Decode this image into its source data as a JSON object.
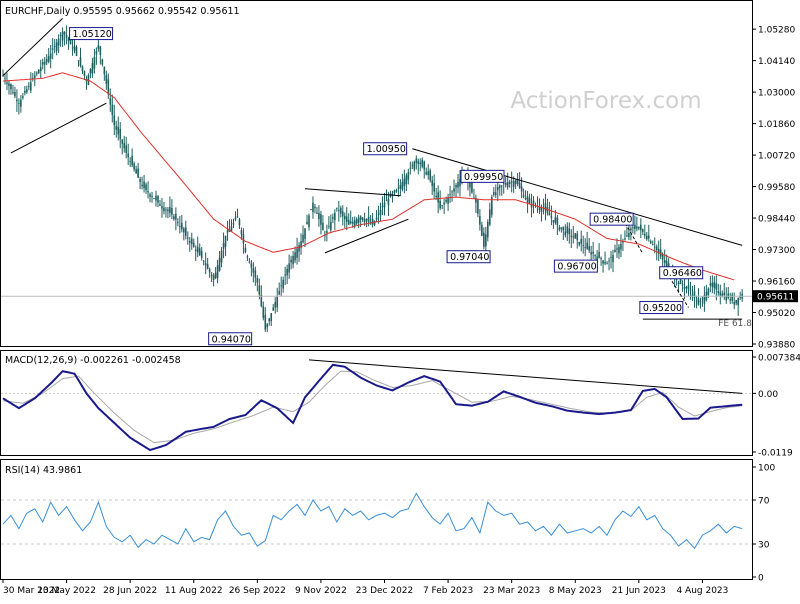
{
  "colors": {
    "frame": "#000000",
    "candle": "#1f5f5f",
    "ma": "#e0302a",
    "macd": "#1a1a8c",
    "signal": "#a8a8a8",
    "rsi": "#3a8fd8",
    "grid": "#c8c8c8",
    "watermark": "#d0d0d0",
    "label_border": "#1a1a8c"
  },
  "watermark": "ActionForex.com",
  "chart_data": [
    {
      "type": "candlestick",
      "header": "EURCHF,Daily  0.95595 0.95662 0.95542 0.95611",
      "ylim": [
        0.9388,
        1.0572
      ],
      "y_ticks": [
        "1.05280",
        "1.04140",
        "1.03000",
        "1.01860",
        "1.00720",
        "0.99580",
        "0.98440",
        "0.97300",
        "0.96160",
        "0.95020",
        "0.93880"
      ],
      "current_price": "0.95611",
      "price_levels": [
        {
          "label": "1.05120",
          "value": 1.0512
        },
        {
          "label": "0.94070",
          "value": 0.9407
        },
        {
          "label": "1.00950",
          "value": 1.0095
        },
        {
          "label": "0.99950",
          "value": 0.9995
        },
        {
          "label": "0.97040",
          "value": 0.9704
        },
        {
          "label": "0.96700",
          "value": 0.967
        },
        {
          "label": "0.98400",
          "value": 0.984
        },
        {
          "label": "0.96460",
          "value": 0.9646
        },
        {
          "label": "0.95200",
          "value": 0.952
        }
      ],
      "annotation": "FE 61.8",
      "x_labels": [
        "30 Mar 2022",
        "13 May 2022",
        "28 Jun 2022",
        "11 Aug 2022",
        "26 Sep 2022",
        "9 Nov 2022",
        "23 Dec 2022",
        "7 Feb 2023",
        "23 Mar 2023",
        "8 May 2023",
        "21 Jun 2023",
        "4 Aug 2023"
      ],
      "close_path": [
        [
          0,
          1.036
        ],
        [
          8,
          1.026
        ],
        [
          16,
          1.036
        ],
        [
          24,
          1.044
        ],
        [
          30,
          1.052
        ],
        [
          36,
          1.045
        ],
        [
          42,
          1.034
        ],
        [
          48,
          1.047
        ],
        [
          52,
          1.033
        ],
        [
          56,
          1.018
        ],
        [
          62,
          1.008
        ],
        [
          70,
          0.996
        ],
        [
          78,
          0.99
        ],
        [
          86,
          0.985
        ],
        [
          92,
          0.978
        ],
        [
          100,
          0.97
        ],
        [
          106,
          0.962
        ],
        [
          112,
          0.978
        ],
        [
          118,
          0.985
        ],
        [
          122,
          0.972
        ],
        [
          128,
          0.961
        ],
        [
          132,
          0.944
        ],
        [
          136,
          0.952
        ],
        [
          140,
          0.96
        ],
        [
          144,
          0.968
        ],
        [
          150,
          0.976
        ],
        [
          156,
          0.99
        ],
        [
          162,
          0.978
        ],
        [
          168,
          0.988
        ],
        [
          174,
          0.982
        ],
        [
          180,
          0.985
        ],
        [
          186,
          0.982
        ],
        [
          192,
          0.99
        ],
        [
          198,
          0.994
        ],
        [
          204,
          1.001
        ],
        [
          208,
          1.006
        ],
        [
          214,
          1.0
        ],
        [
          220,
          0.988
        ],
        [
          226,
          0.994
        ],
        [
          232,
          1.001
        ],
        [
          238,
          0.99
        ],
        [
          242,
          0.974
        ],
        [
          246,
          0.992
        ],
        [
          252,
          0.997
        ],
        [
          258,
          0.998
        ],
        [
          264,
          0.99
        ],
        [
          272,
          0.988
        ],
        [
          280,
          0.981
        ],
        [
          288,
          0.977
        ],
        [
          296,
          0.972
        ],
        [
          304,
          0.968
        ],
        [
          312,
          0.976
        ],
        [
          318,
          0.982
        ],
        [
          324,
          0.978
        ],
        [
          328,
          0.974
        ],
        [
          334,
          0.967
        ],
        [
          340,
          0.961
        ],
        [
          346,
          0.958
        ],
        [
          350,
          0.953
        ],
        [
          356,
          0.96
        ],
        [
          362,
          0.957
        ],
        [
          368,
          0.954
        ],
        [
          372,
          0.957
        ]
      ],
      "ma_path": [
        [
          0,
          1.034
        ],
        [
          20,
          1.035
        ],
        [
          30,
          1.037
        ],
        [
          44,
          1.034
        ],
        [
          56,
          1.028
        ],
        [
          70,
          1.015
        ],
        [
          90,
          0.998
        ],
        [
          106,
          0.984
        ],
        [
          122,
          0.976
        ],
        [
          136,
          0.972
        ],
        [
          150,
          0.974
        ],
        [
          164,
          0.979
        ],
        [
          180,
          0.982
        ],
        [
          196,
          0.984
        ],
        [
          212,
          0.991
        ],
        [
          228,
          0.992
        ],
        [
          242,
          0.991
        ],
        [
          258,
          0.991
        ],
        [
          272,
          0.988
        ],
        [
          288,
          0.984
        ],
        [
          304,
          0.977
        ],
        [
          320,
          0.975
        ],
        [
          336,
          0.97
        ],
        [
          350,
          0.966
        ],
        [
          368,
          0.962
        ]
      ]
    },
    {
      "type": "line",
      "header": "MACD(12,26,9) -0.002261 -0.002458",
      "ylim": [
        -0.0119,
        0.007384
      ],
      "y_ticks": [
        "0.007384",
        "0.00",
        "-0.0119"
      ],
      "series": [
        {
          "role": "macd",
          "points": [
            [
              0,
              -0.001
            ],
            [
              8,
              -0.003
            ],
            [
              16,
              -0.001
            ],
            [
              24,
              0.002
            ],
            [
              30,
              0.0045
            ],
            [
              36,
              0.004
            ],
            [
              42,
              0.0
            ],
            [
              48,
              -0.003
            ],
            [
              56,
              -0.006
            ],
            [
              64,
              -0.009
            ],
            [
              74,
              -0.0115
            ],
            [
              82,
              -0.0105
            ],
            [
              92,
              -0.0078
            ],
            [
              100,
              -0.0072
            ],
            [
              106,
              -0.0068
            ],
            [
              114,
              -0.0052
            ],
            [
              122,
              -0.0044
            ],
            [
              130,
              -0.0014
            ],
            [
              138,
              -0.003
            ],
            [
              146,
              -0.006
            ],
            [
              152,
              -0.0008
            ],
            [
              160,
              0.003
            ],
            [
              166,
              0.0058
            ],
            [
              172,
              0.0054
            ],
            [
              180,
              0.0032
            ],
            [
              188,
              0.0016
            ],
            [
              196,
              0.0006
            ],
            [
              204,
              0.0022
            ],
            [
              212,
              0.0035
            ],
            [
              220,
              0.0024
            ],
            [
              228,
              -0.0022
            ],
            [
              236,
              -0.0025
            ],
            [
              244,
              -0.0017
            ],
            [
              252,
              0.0004
            ],
            [
              260,
              -0.0007
            ],
            [
              268,
              -0.0019
            ],
            [
              276,
              -0.0026
            ],
            [
              284,
              -0.0035
            ],
            [
              292,
              -0.0039
            ],
            [
              300,
              -0.0042
            ],
            [
              308,
              -0.0039
            ],
            [
              316,
              -0.0034
            ],
            [
              322,
              0.0005
            ],
            [
              328,
              0.0009
            ],
            [
              334,
              -0.0008
            ],
            [
              342,
              -0.0052
            ],
            [
              350,
              -0.0051
            ],
            [
              356,
              -0.0029
            ],
            [
              364,
              -0.0026
            ],
            [
              372,
              -0.0023
            ]
          ]
        },
        {
          "role": "signal",
          "points": [
            [
              0,
              -0.0015
            ],
            [
              10,
              -0.002
            ],
            [
              20,
              0.0
            ],
            [
              30,
              0.003
            ],
            [
              38,
              0.0035
            ],
            [
              46,
              0.0
            ],
            [
              56,
              -0.004
            ],
            [
              66,
              -0.0075
            ],
            [
              76,
              -0.01
            ],
            [
              86,
              -0.0095
            ],
            [
              96,
              -0.0081
            ],
            [
              106,
              -0.0072
            ],
            [
              116,
              -0.0058
            ],
            [
              126,
              -0.0045
            ],
            [
              136,
              -0.0028
            ],
            [
              146,
              -0.0037
            ],
            [
              154,
              -0.0018
            ],
            [
              162,
              0.0016
            ],
            [
              170,
              0.0045
            ],
            [
              178,
              0.0044
            ],
            [
              186,
              0.0028
            ],
            [
              196,
              0.0012
            ],
            [
              206,
              0.0016
            ],
            [
              216,
              0.0026
            ],
            [
              226,
              0.0004
            ],
            [
              236,
              -0.0018
            ],
            [
              246,
              -0.0016
            ],
            [
              256,
              -0.0006
            ],
            [
              266,
              -0.0013
            ],
            [
              276,
              -0.0022
            ],
            [
              286,
              -0.0031
            ],
            [
              296,
              -0.0038
            ],
            [
              306,
              -0.004
            ],
            [
              316,
              -0.0035
            ],
            [
              324,
              -0.0008
            ],
            [
              332,
              0.0002
            ],
            [
              340,
              -0.0028
            ],
            [
              348,
              -0.0046
            ],
            [
              356,
              -0.0037
            ],
            [
              364,
              -0.0029
            ],
            [
              372,
              -0.0025
            ]
          ]
        }
      ],
      "trendline": [
        [
          154,
          0.0068
        ],
        [
          372,
          0.0
        ]
      ]
    },
    {
      "type": "line",
      "header": "RSI(14) 43.9861",
      "ylim": [
        0,
        100
      ],
      "y_ticks": [
        "100",
        "70",
        "30",
        "0"
      ],
      "levels": [
        70,
        30
      ],
      "series": [
        {
          "role": "rsi",
          "points": [
            [
              0,
              48
            ],
            [
              4,
              56
            ],
            [
              8,
              44
            ],
            [
              12,
              58
            ],
            [
              16,
              62
            ],
            [
              20,
              50
            ],
            [
              24,
              68
            ],
            [
              28,
              56
            ],
            [
              32,
              64
            ],
            [
              36,
              52
            ],
            [
              40,
              42
            ],
            [
              44,
              50
            ],
            [
              48,
              68
            ],
            [
              52,
              46
            ],
            [
              56,
              36
            ],
            [
              60,
              32
            ],
            [
              64,
              38
            ],
            [
              68,
              27
            ],
            [
              72,
              34
            ],
            [
              76,
              30
            ],
            [
              80,
              38
            ],
            [
              84,
              34
            ],
            [
              88,
              30
            ],
            [
              92,
              44
            ],
            [
              96,
              32
            ],
            [
              100,
              36
            ],
            [
              104,
              34
            ],
            [
              108,
              52
            ],
            [
              112,
              60
            ],
            [
              116,
              46
            ],
            [
              120,
              38
            ],
            [
              124,
              40
            ],
            [
              128,
              28
            ],
            [
              132,
              33
            ],
            [
              136,
              56
            ],
            [
              140,
              52
            ],
            [
              144,
              60
            ],
            [
              148,
              66
            ],
            [
              152,
              56
            ],
            [
              156,
              70
            ],
            [
              160,
              60
            ],
            [
              164,
              64
            ],
            [
              168,
              50
            ],
            [
              172,
              62
            ],
            [
              176,
              56
            ],
            [
              180,
              60
            ],
            [
              184,
              52
            ],
            [
              188,
              56
            ],
            [
              192,
              58
            ],
            [
              196,
              54
            ],
            [
              200,
              60
            ],
            [
              204,
              62
            ],
            [
              208,
              76
            ],
            [
              212,
              64
            ],
            [
              216,
              54
            ],
            [
              220,
              48
            ],
            [
              224,
              58
            ],
            [
              228,
              42
            ],
            [
              232,
              44
            ],
            [
              236,
              54
            ],
            [
              240,
              40
            ],
            [
              244,
              68
            ],
            [
              248,
              60
            ],
            [
              252,
              56
            ],
            [
              256,
              58
            ],
            [
              260,
              48
            ],
            [
              264,
              50
            ],
            [
              268,
              42
            ],
            [
              272,
              46
            ],
            [
              276,
              38
            ],
            [
              280,
              48
            ],
            [
              284,
              40
            ],
            [
              288,
              42
            ],
            [
              292,
              44
            ],
            [
              296,
              40
            ],
            [
              300,
              46
            ],
            [
              304,
              38
            ],
            [
              308,
              52
            ],
            [
              312,
              60
            ],
            [
              316,
              55
            ],
            [
              320,
              64
            ],
            [
              324,
              52
            ],
            [
              328,
              56
            ],
            [
              332,
              44
            ],
            [
              336,
              38
            ],
            [
              340,
              28
            ],
            [
              344,
              34
            ],
            [
              348,
              26
            ],
            [
              352,
              38
            ],
            [
              356,
              42
            ],
            [
              360,
              48
            ],
            [
              364,
              40
            ],
            [
              368,
              46
            ],
            [
              372,
              44
            ]
          ]
        }
      ]
    }
  ]
}
